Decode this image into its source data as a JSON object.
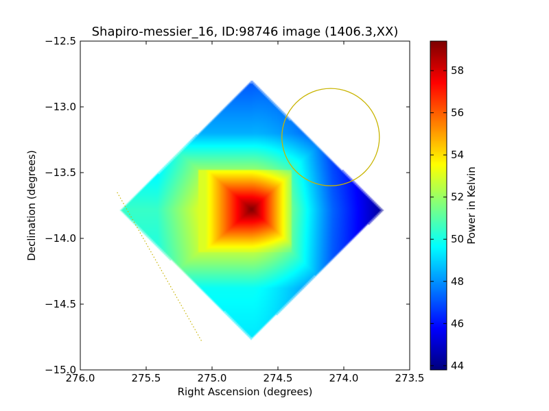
{
  "chart_data": {
    "type": "heatmap",
    "title": "Shapiro-messier_16, ID:98746 image (1406.3,XX)",
    "xlabel": "Right Ascension (degrees)",
    "ylabel": "Declination (degrees)",
    "xlim": [
      276.0,
      273.5
    ],
    "ylim": [
      -15.0,
      -12.5
    ],
    "x_ticks": [
      276.0,
      275.5,
      275.0,
      274.5,
      274.0,
      273.5
    ],
    "x_tick_labels": [
      "276.0",
      "275.5",
      "275.0",
      "274.5",
      "274.0",
      "273.5"
    ],
    "y_ticks": [
      -12.5,
      -13.0,
      -13.5,
      -14.0,
      -14.5,
      -15.0
    ],
    "y_tick_labels": [
      "−12.5",
      "−13.0",
      "−13.5",
      "−14.0",
      "−14.5",
      "−15.0"
    ],
    "colorbar": {
      "label": "Power in Kelvin",
      "range": [
        43.8,
        59.4
      ],
      "ticks": [
        44,
        46,
        48,
        50,
        52,
        54,
        56,
        58
      ],
      "tick_labels": [
        "44",
        "46",
        "48",
        "50",
        "52",
        "54",
        "56",
        "58"
      ],
      "colormap": "jet"
    },
    "map": {
      "footprint_diamond": {
        "top": [
          274.7,
          -12.8
        ],
        "right": [
          273.7,
          -13.78
        ],
        "bottom": [
          274.7,
          -14.77
        ],
        "left": [
          275.7,
          -13.82
        ]
      },
      "peak": {
        "ra": 274.7,
        "dec": -13.78,
        "value": 59.4
      },
      "hot_region": {
        "ra_range": [
          275.1,
          274.4
        ],
        "dec_range": [
          -14.1,
          -13.48
        ]
      },
      "min": {
        "ra": 273.7,
        "dec": -13.78,
        "value": 43.8
      },
      "edge_value_left": 50.5,
      "edge_value_top": 47.0,
      "edge_value_bottom": 48.5
    },
    "overlays": [
      {
        "type": "circle",
        "center": [
          274.1,
          -13.23
        ],
        "radius_deg": 0.37,
        "color": "#c8b400"
      },
      {
        "type": "dotted-line",
        "from": [
          275.72,
          -13.65
        ],
        "to": [
          275.08,
          -14.78
        ],
        "color": "#c8b400"
      }
    ],
    "grid": false
  }
}
